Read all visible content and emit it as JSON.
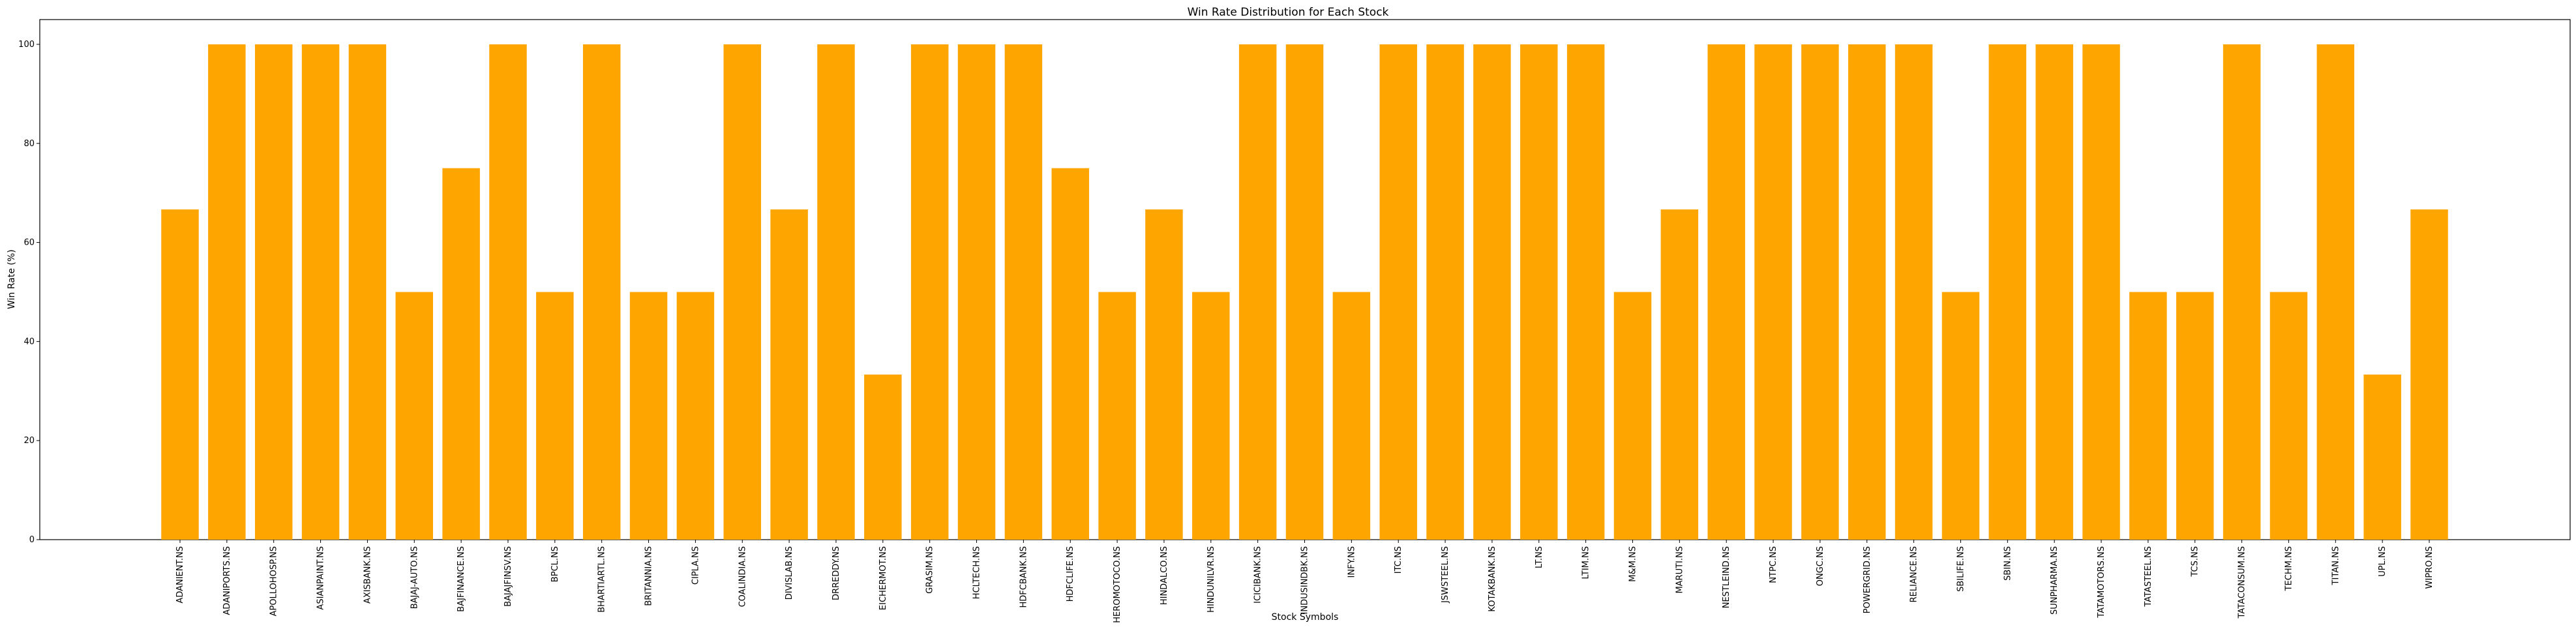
{
  "chart_data": {
    "type": "bar",
    "title": "Win Rate Distribution for Each Stock",
    "xlabel": "Stock Symbols",
    "ylabel": "Win Rate (%)",
    "ylim": [
      0,
      105
    ],
    "yticks": [
      0,
      20,
      40,
      60,
      80,
      100
    ],
    "grid": false,
    "bar_color": "#FFA500",
    "categories": [
      "ADANIENT.NS",
      "ADANIPORTS.NS",
      "APOLLOHOSP.NS",
      "ASIANPAINT.NS",
      "AXISBANK.NS",
      "BAJAJ-AUTO.NS",
      "BAJFINANCE.NS",
      "BAJAJFINSV.NS",
      "BPCL.NS",
      "BHARTIARTL.NS",
      "BRITANNIA.NS",
      "CIPLA.NS",
      "COALINDIA.NS",
      "DIVISLAB.NS",
      "DRREDDY.NS",
      "EICHERMOT.NS",
      "GRASIM.NS",
      "HCLTECH.NS",
      "HDFCBANK.NS",
      "HDFCLIFE.NS",
      "HEROMOTOCO.NS",
      "HINDALCO.NS",
      "HINDUNILVR.NS",
      "ICICIBANK.NS",
      "INDUSINDBK.NS",
      "INFY.NS",
      "ITC.NS",
      "JSWSTEEL.NS",
      "KOTAKBANK.NS",
      "LT.NS",
      "LTIM.NS",
      "M&M.NS",
      "MARUTI.NS",
      "NESTLEIND.NS",
      "NTPC.NS",
      "ONGC.NS",
      "POWERGRID.NS",
      "RELIANCE.NS",
      "SBILIFE.NS",
      "SBIN.NS",
      "SUNPHARMA.NS",
      "TATAMOTORS.NS",
      "TATASTEEL.NS",
      "TCS.NS",
      "TATACONSUM.NS",
      "TECHM.NS",
      "TITAN.NS",
      "UPL.NS",
      "WIPRO.NS"
    ],
    "values": [
      66.67,
      100,
      100,
      100,
      100,
      50,
      75,
      100,
      50,
      100,
      50,
      50,
      100,
      66.67,
      100,
      33.33,
      100,
      100,
      100,
      75,
      50,
      66.67,
      50,
      100,
      100,
      50,
      100,
      100,
      100,
      100,
      100,
      50,
      66.67,
      100,
      100,
      100,
      100,
      100,
      50,
      100,
      100,
      100,
      50,
      50,
      100,
      50,
      100,
      33.33,
      66.67
    ]
  }
}
